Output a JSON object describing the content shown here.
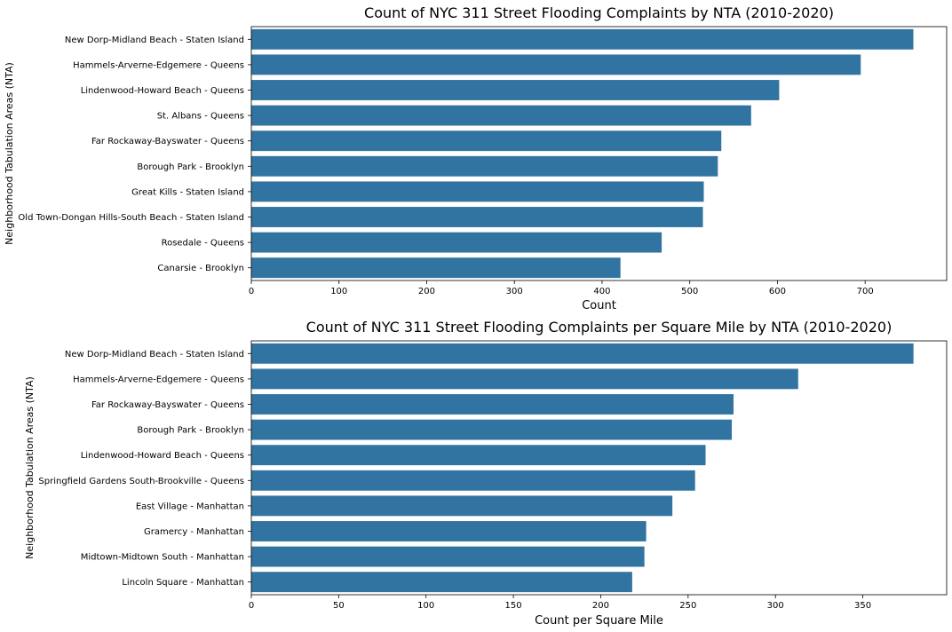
{
  "chart_data": [
    {
      "type": "bar",
      "orientation": "horizontal",
      "title": "Count of NYC 311 Street Flooding Complaints by NTA (2010-2020)",
      "xlabel": "Count",
      "ylabel": "Neighborhood Tabulation Areas (NTA)",
      "xlim": [
        0,
        793
      ],
      "xticks": [
        0,
        100,
        200,
        300,
        400,
        500,
        600,
        700
      ],
      "grid": false,
      "bar_color": "#3274a1",
      "categories": [
        "New Dorp-Midland Beach - Staten Island",
        "Hammels-Arverne-Edgemere - Queens",
        "Lindenwood-Howard Beach - Queens",
        "St. Albans - Queens",
        "Far Rockaway-Bayswater - Queens",
        "Borough Park - Brooklyn",
        "Great Kills - Staten Island",
        "Old Town-Dongan Hills-South Beach - Staten Island",
        "Rosedale - Queens",
        "Canarsie - Brooklyn"
      ],
      "values": [
        755,
        695,
        602,
        570,
        536,
        532,
        516,
        515,
        468,
        421
      ]
    },
    {
      "type": "bar",
      "orientation": "horizontal",
      "title": "Count of NYC 311 Street Flooding Complaints per Square Mile by NTA (2010-2020)",
      "xlabel": "Count per Square Mile",
      "ylabel": "Neighborhood Tabulation Areas (NTA)",
      "xlim": [
        0,
        398
      ],
      "xticks": [
        0,
        50,
        100,
        150,
        200,
        250,
        300,
        350
      ],
      "grid": false,
      "bar_color": "#3274a1",
      "categories": [
        "New Dorp-Midland Beach - Staten Island",
        "Hammels-Arverne-Edgemere - Queens",
        "Far Rockaway-Bayswater - Queens",
        "Borough Park - Brooklyn",
        "Lindenwood-Howard Beach - Queens",
        "Springfield Gardens South-Brookville - Queens",
        "East Village - Manhattan",
        "Gramercy - Manhattan",
        "Midtown-Midtown South - Manhattan",
        "Lincoln Square - Manhattan"
      ],
      "values": [
        379,
        313,
        276,
        275,
        260,
        254,
        241,
        226,
        225,
        218
      ]
    }
  ]
}
